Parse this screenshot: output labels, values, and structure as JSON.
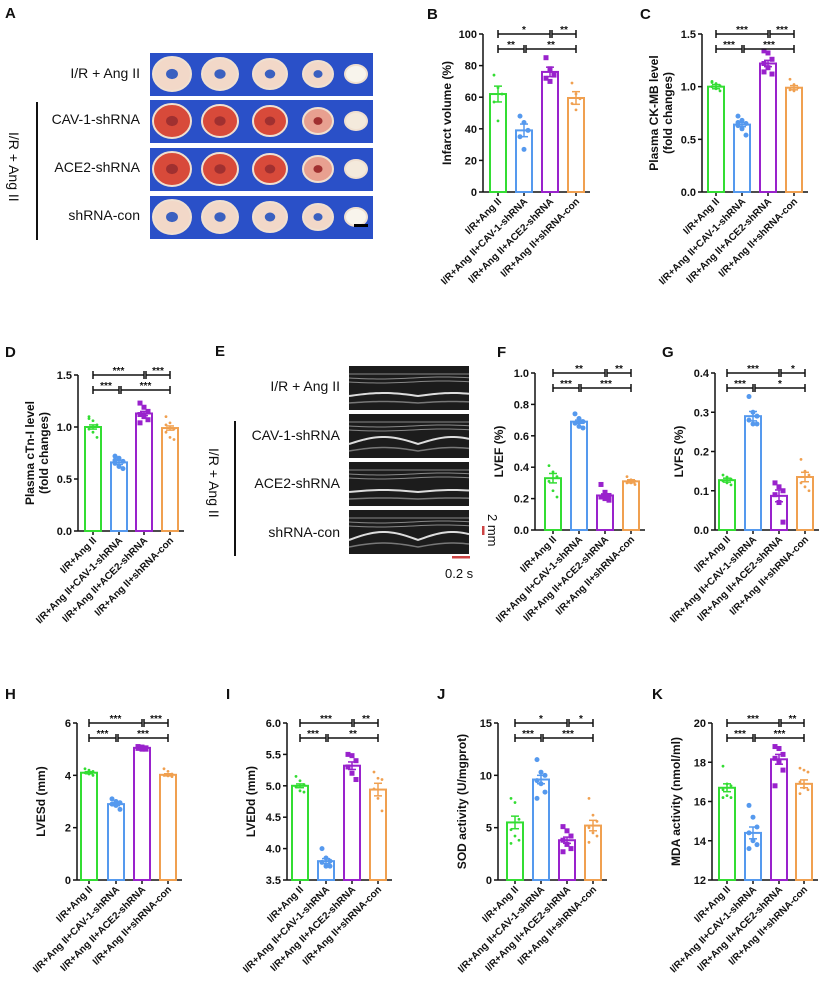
{
  "colors": {
    "group1": "#33dd33",
    "group2": "#5599ee",
    "group3": "#9922cc",
    "group4": "#f0a050",
    "photo_bg": "#2a50c8",
    "echo_bg": "#1c1c1c",
    "scale_bar": "#cc4444"
  },
  "categories": [
    "I/R+Ang II",
    "I/R+Ang II+CAV-1-shRNA",
    "I/R+Ang II+ACE2-shRNA",
    "I/R+Ang II+shRNA-con"
  ],
  "panel_a": {
    "label": "A",
    "rows": [
      "I/R + Ang II",
      "CAV-1-shRNA",
      "ACE2-shRNA",
      "shRNA-con"
    ],
    "group_label": "I/R + Ang II"
  },
  "panel_e": {
    "label": "E",
    "rows": [
      "I/R + Ang II",
      "CAV-1-shRNA",
      "ACE2-shRNA",
      "shRNA-con"
    ],
    "group_label": "I/R + Ang II",
    "scale_v": "2 mm",
    "scale_h": "0.2 s"
  },
  "chart_data": [
    {
      "id": "B",
      "label": "B",
      "type": "bar",
      "ylabel": [
        "Infarct volume (%)"
      ],
      "ylim": [
        0,
        100
      ],
      "yticks": [
        "0",
        "20",
        "40",
        "60",
        "80",
        "100"
      ],
      "means": [
        62,
        39,
        76,
        59.5
      ],
      "sem": [
        5,
        4,
        3,
        4
      ],
      "points": [
        [
          74,
          66,
          62,
          57,
          45
        ],
        [
          48,
          44,
          39,
          35,
          27
        ],
        [
          85,
          78,
          74,
          72,
          70
        ],
        [
          69,
          62,
          59,
          56,
          52
        ]
      ],
      "sig_top": [
        "*",
        "**"
      ],
      "sig_bottom": [
        "**",
        "**"
      ]
    },
    {
      "id": "C",
      "label": "C",
      "type": "bar",
      "ylabel": [
        "Plasma CK-MB level",
        "(fold changes)"
      ],
      "ylim": [
        0,
        1.5
      ],
      "yticks": [
        "0.0",
        "0.5",
        "1.0",
        "1.5"
      ],
      "means": [
        1.0,
        0.64,
        1.22,
        0.99
      ],
      "sem": [
        0.02,
        0.02,
        0.03,
        0.02
      ],
      "points": [
        [
          1.05,
          1.03,
          1.01,
          1.0,
          0.98,
          0.96,
          1.04
        ],
        [
          0.72,
          0.68,
          0.65,
          0.63,
          0.6,
          0.54,
          0.66
        ],
        [
          1.34,
          1.32,
          1.26,
          1.22,
          1.18,
          1.12,
          1.14
        ],
        [
          1.07,
          1.02,
          0.99,
          0.97,
          0.96
        ]
      ],
      "sig_top": [
        "***",
        "***"
      ],
      "sig_bottom": [
        "***",
        "***"
      ]
    },
    {
      "id": "D",
      "label": "D",
      "type": "bar",
      "ylabel": [
        "Plasma cTn-I level",
        "(fold changes)"
      ],
      "ylim": [
        0,
        1.5
      ],
      "yticks": [
        "0.0",
        "0.5",
        "1.0",
        "1.5"
      ],
      "means": [
        1.0,
        0.66,
        1.13,
        0.99
      ],
      "sem": [
        0.02,
        0.02,
        0.02,
        0.02
      ],
      "points": [
        [
          1.1,
          1.06,
          1.02,
          0.98,
          0.95,
          0.9,
          1.08
        ],
        [
          0.72,
          0.7,
          0.67,
          0.65,
          0.62,
          0.6,
          0.68
        ],
        [
          1.23,
          1.19,
          1.15,
          1.12,
          1.1,
          1.07,
          1.04
        ],
        [
          1.1,
          1.04,
          0.98,
          0.95,
          0.9,
          0.88,
          1.02
        ]
      ],
      "sig_top": [
        "***",
        "***"
      ],
      "sig_bottom": [
        "***",
        "***"
      ]
    },
    {
      "id": "F",
      "label": "F",
      "type": "bar",
      "ylabel": [
        "LVEF (%)"
      ],
      "ylim": [
        0,
        1.0
      ],
      "yticks": [
        "0.0",
        "0.2",
        "0.4",
        "0.6",
        "0.8",
        "1.0"
      ],
      "means": [
        0.33,
        0.69,
        0.22,
        0.31
      ],
      "sem": [
        0.03,
        0.01,
        0.01,
        0.01
      ],
      "points": [
        [
          0.41,
          0.37,
          0.34,
          0.31,
          0.25,
          0.21
        ],
        [
          0.74,
          0.71,
          0.69,
          0.68,
          0.66,
          0.65
        ],
        [
          0.29,
          0.24,
          0.22,
          0.21,
          0.2,
          0.19
        ],
        [
          0.34,
          0.32,
          0.31,
          0.3,
          0.3,
          0.29
        ]
      ],
      "sig_top": [
        "**",
        "**"
      ],
      "sig_bottom": [
        "***",
        "***"
      ]
    },
    {
      "id": "G",
      "label": "G",
      "type": "bar",
      "ylabel": [
        "LVFS (%)"
      ],
      "ylim": [
        0,
        0.4
      ],
      "yticks": [
        "0.0",
        "0.1",
        "0.2",
        "0.3",
        "0.4"
      ],
      "means": [
        0.127,
        0.29,
        0.087,
        0.135
      ],
      "sem": [
        0.005,
        0.012,
        0.015,
        0.012
      ],
      "points": [
        [
          0.14,
          0.135,
          0.13,
          0.125,
          0.12,
          0.115
        ],
        [
          0.34,
          0.3,
          0.29,
          0.28,
          0.27,
          0.27
        ],
        [
          0.12,
          0.11,
          0.1,
          0.09,
          0.07,
          0.02
        ],
        [
          0.18,
          0.15,
          0.14,
          0.12,
          0.11,
          0.1
        ]
      ],
      "sig_top": [
        "***",
        "*"
      ],
      "sig_bottom": [
        "***",
        "*"
      ]
    },
    {
      "id": "H",
      "label": "H",
      "type": "bar",
      "ylabel": [
        "LVESd (mm)"
      ],
      "ylim": [
        0,
        6
      ],
      "yticks": [
        "0",
        "2",
        "4",
        "6"
      ],
      "means": [
        4.1,
        2.9,
        5.05,
        4.02
      ],
      "sem": [
        0.04,
        0.06,
        0.02,
        0.04
      ],
      "points": [
        [
          4.25,
          4.2,
          4.15,
          4.1,
          4.05,
          4.0
        ],
        [
          3.1,
          3.0,
          2.95,
          2.9,
          2.85,
          2.7
        ],
        [
          5.1,
          5.08,
          5.05,
          5.03,
          5.0,
          5.0
        ],
        [
          4.25,
          4.15,
          4.05,
          4.0,
          3.98,
          3.95
        ]
      ],
      "sig_top": [
        "***",
        "***"
      ],
      "sig_bottom": [
        "***",
        "***"
      ]
    },
    {
      "id": "I",
      "label": "I",
      "type": "bar",
      "ylabel": [
        "LVEDd (mm)"
      ],
      "ylim": [
        3.5,
        6.0
      ],
      "yticks": [
        "3.5",
        "4.0",
        "4.5",
        "5.0",
        "5.5",
        "6.0"
      ],
      "means": [
        5.0,
        3.8,
        5.32,
        4.94
      ],
      "sem": [
        0.03,
        0.04,
        0.06,
        0.1
      ],
      "points": [
        [
          5.15,
          5.08,
          5.02,
          4.98,
          4.92,
          4.9
        ],
        [
          4.0,
          3.85,
          3.8,
          3.78,
          3.72,
          3.72
        ],
        [
          5.5,
          5.48,
          5.4,
          5.3,
          5.2,
          5.1
        ],
        [
          5.22,
          5.12,
          5.1,
          4.95,
          4.8,
          4.6
        ]
      ],
      "sig_top": [
        "***",
        "**"
      ],
      "sig_bottom": [
        "***",
        "**"
      ]
    },
    {
      "id": "J",
      "label": "J",
      "type": "bar",
      "ylabel": [
        "SOD activity (U/mgprot)"
      ],
      "ylim": [
        0,
        15
      ],
      "yticks": [
        "0",
        "5",
        "10",
        "15"
      ],
      "means": [
        5.5,
        9.6,
        3.8,
        5.2
      ],
      "sem": [
        0.6,
        0.4,
        0.3,
        0.5
      ],
      "points": [
        [
          7.8,
          7.4,
          5.8,
          4.8,
          4.2,
          3.8,
          3.5
        ],
        [
          11.5,
          10.3,
          10,
          9.5,
          9.2,
          8.4,
          7.8
        ],
        [
          5.1,
          4.7,
          4.2,
          3.8,
          3.4,
          3.0,
          2.7
        ],
        [
          7.8,
          6.2,
          5.6,
          5.0,
          4.5,
          4.2,
          3.6
        ]
      ],
      "sig_top": [
        "*",
        "*"
      ],
      "sig_bottom": [
        "***",
        "***"
      ]
    },
    {
      "id": "K",
      "label": "K",
      "type": "bar",
      "ylabel": [
        "MDA activity (nmol/ml)"
      ],
      "ylim": [
        12,
        20
      ],
      "yticks": [
        "12",
        "14",
        "16",
        "18",
        "20"
      ],
      "means": [
        16.7,
        14.4,
        18.15,
        16.9
      ],
      "sem": [
        0.2,
        0.3,
        0.25,
        0.2
      ],
      "points": [
        [
          17.8,
          16.9,
          16.8,
          16.6,
          16.3,
          16.2,
          16.2
        ],
        [
          15.8,
          15.2,
          14.7,
          14.4,
          14.0,
          13.8,
          13.6
        ],
        [
          18.8,
          18.7,
          18.4,
          18.2,
          18.0,
          17.6,
          16.8
        ],
        [
          17.7,
          17.6,
          17.5,
          17.0,
          16.7,
          16.6,
          16.4
        ]
      ],
      "sig_top": [
        "***",
        "**"
      ],
      "sig_bottom": [
        "***",
        "***"
      ]
    }
  ]
}
